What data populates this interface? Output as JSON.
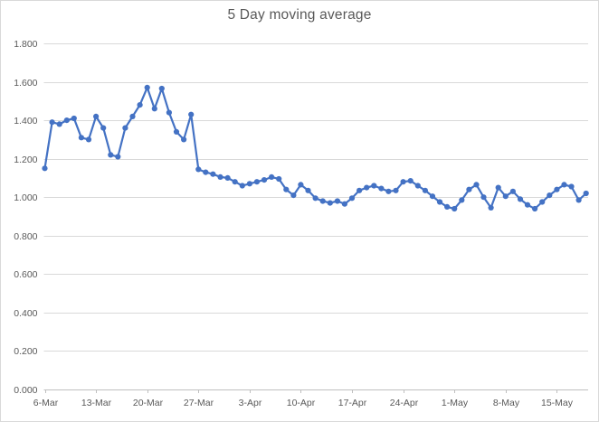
{
  "chart_data": {
    "type": "line",
    "title": "5 Day moving average",
    "legend": "none",
    "grid": "horizontal",
    "ylim": [
      0,
      1.8
    ],
    "ytick_labels": [
      "0.000",
      "0.200",
      "0.400",
      "0.600",
      "0.800",
      "1.000",
      "1.200",
      "1.400",
      "1.600",
      "1.800"
    ],
    "xticks": {
      "indices": [
        0,
        7,
        14,
        21,
        28,
        35,
        42,
        49,
        56,
        63,
        70
      ],
      "labels": [
        "6-Mar",
        "13-Mar",
        "20-Mar",
        "27-Mar",
        "3-Apr",
        "10-Apr",
        "17-Apr",
        "24-Apr",
        "1-May",
        "8-May",
        "15-May"
      ]
    },
    "x": [
      "6-Mar",
      "7-Mar",
      "8-Mar",
      "9-Mar",
      "10-Mar",
      "11-Mar",
      "12-Mar",
      "13-Mar",
      "14-Mar",
      "15-Mar",
      "16-Mar",
      "17-Mar",
      "18-Mar",
      "19-Mar",
      "20-Mar",
      "21-Mar",
      "22-Mar",
      "23-Mar",
      "24-Mar",
      "25-Mar",
      "26-Mar",
      "27-Mar",
      "28-Mar",
      "29-Mar",
      "30-Mar",
      "31-Mar",
      "1-Apr",
      "2-Apr",
      "3-Apr",
      "4-Apr",
      "5-Apr",
      "6-Apr",
      "7-Apr",
      "8-Apr",
      "9-Apr",
      "10-Apr",
      "11-Apr",
      "12-Apr",
      "13-Apr",
      "14-Apr",
      "15-Apr",
      "16-Apr",
      "17-Apr",
      "18-Apr",
      "19-Apr",
      "20-Apr",
      "21-Apr",
      "22-Apr",
      "23-Apr",
      "24-Apr",
      "25-Apr",
      "26-Apr",
      "27-Apr",
      "28-Apr",
      "29-Apr",
      "30-Apr",
      "1-May",
      "2-May",
      "3-May",
      "4-May",
      "5-May",
      "6-May",
      "7-May",
      "8-May",
      "9-May",
      "10-May",
      "11-May",
      "12-May",
      "13-May",
      "14-May",
      "15-May",
      "16-May",
      "17-May",
      "18-May",
      "19-May"
    ],
    "values": [
      1.15,
      1.39,
      1.38,
      1.4,
      1.41,
      1.31,
      1.3,
      1.42,
      1.36,
      1.22,
      1.21,
      1.36,
      1.42,
      1.48,
      1.57,
      1.46,
      1.565,
      1.44,
      1.34,
      1.3,
      1.43,
      1.145,
      1.13,
      1.12,
      1.105,
      1.1,
      1.08,
      1.06,
      1.07,
      1.08,
      1.09,
      1.105,
      1.095,
      1.04,
      1.01,
      1.065,
      1.035,
      0.995,
      0.98,
      0.97,
      0.98,
      0.965,
      0.995,
      1.035,
      1.05,
      1.06,
      1.045,
      1.03,
      1.035,
      1.08,
      1.085,
      1.06,
      1.035,
      1.005,
      0.975,
      0.95,
      0.94,
      0.985,
      1.04,
      1.065,
      1.0,
      0.945,
      1.05,
      1.005,
      1.03,
      0.99,
      0.96,
      0.94,
      0.975,
      1.01,
      1.04,
      1.065,
      1.055,
      0.985,
      1.02
    ],
    "colors": {
      "line": "#4472C4",
      "marker": "#4472C4",
      "title_text": "#595959",
      "axis_text": "#595959",
      "gridline": "#D9D9D9",
      "axis_line": "#BFBFBF",
      "border": "#D9D9D9",
      "background": "#FFFFFF"
    }
  }
}
